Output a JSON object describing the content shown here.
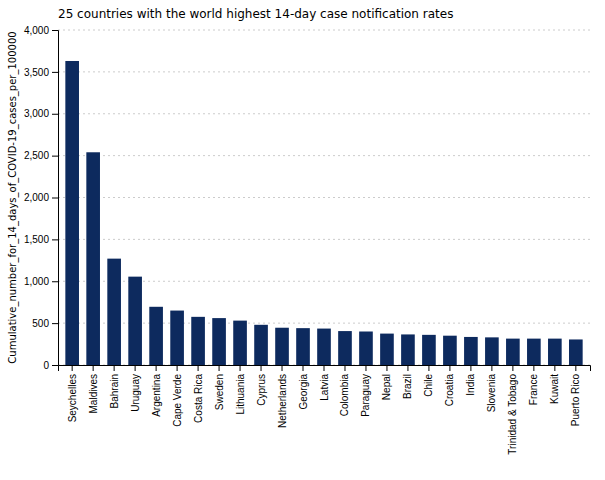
{
  "chart_data": {
    "type": "bar",
    "title": "25 countries with the world highest 14-day case notification rates",
    "ylabel": "Cumulative_number_for_14_days_of_COVID-19_cases_per_100000",
    "categories": [
      "Seychelles",
      "Maldives",
      "Bahrain",
      "Uruguay",
      "Argentina",
      "Cape Verde",
      "Costa Rica",
      "Sweden",
      "Lithuania",
      "Cyprus",
      "Netherlands",
      "Georgia",
      "Latvia",
      "Colombia",
      "Paraguay",
      "Nepal",
      "Brazil",
      "Chile",
      "Croatia",
      "India",
      "Slovenia",
      "Trinidad & Tobago",
      "France",
      "Kuwait",
      "Puerto Rico"
    ],
    "values": [
      3630,
      2540,
      1270,
      1055,
      695,
      650,
      575,
      560,
      530,
      480,
      445,
      440,
      435,
      405,
      400,
      375,
      365,
      360,
      350,
      335,
      330,
      315,
      315,
      315,
      305
    ],
    "color": "#0d2a5e",
    "ylim": [
      0,
      4000
    ],
    "yticks": [
      0,
      500,
      {
        "value": 1000,
        "label": "1,000"
      },
      {
        "value": 1500,
        "label": "1,500"
      },
      {
        "value": 2000,
        "label": "2,000"
      },
      {
        "value": 2500,
        "label": "2,500"
      },
      {
        "value": 3000,
        "label": "3,000"
      },
      {
        "value": 3500,
        "label": "3,500"
      },
      {
        "value": 4000,
        "label": "4,000"
      }
    ],
    "grid": true
  }
}
